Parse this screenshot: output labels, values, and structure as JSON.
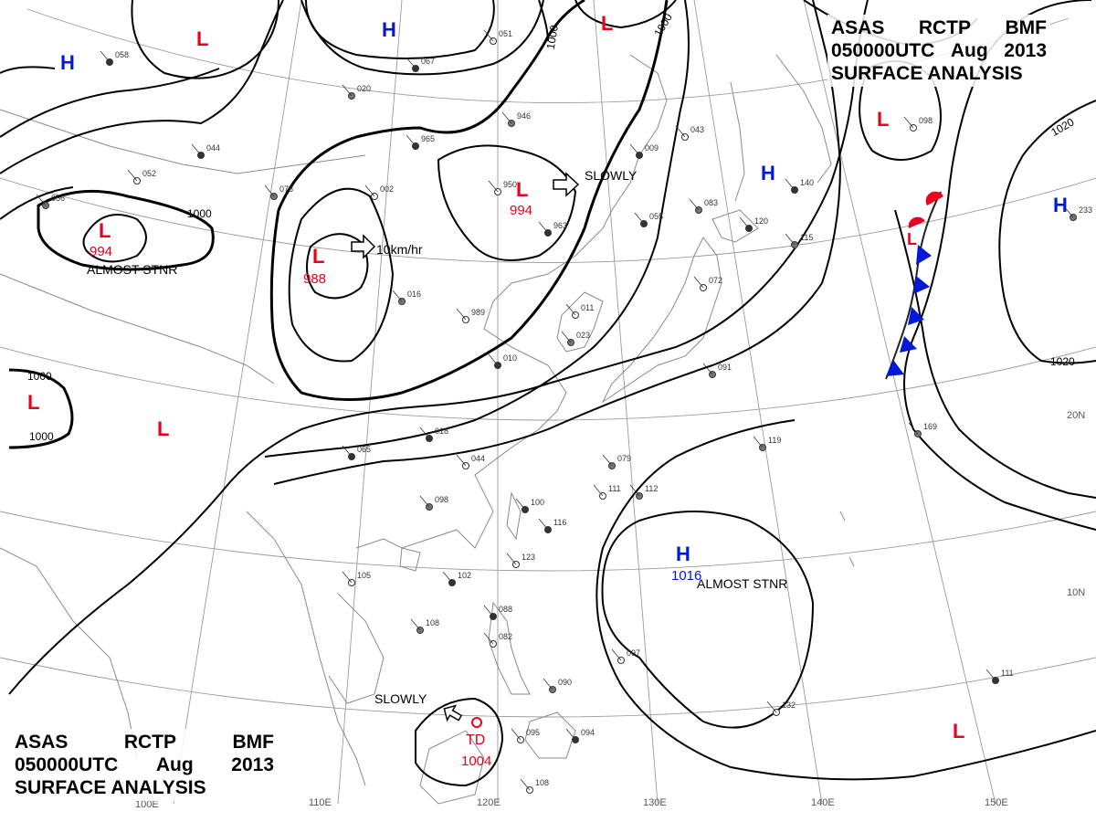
{
  "title": {
    "agency": "ASAS",
    "station": "RCTP",
    "code": "BMF",
    "time": "050000UTC",
    "month": "Aug",
    "year": "2013",
    "product": "SURFACE ANALYSIS"
  },
  "longitude_labels": [
    "100E",
    "110E",
    "120E",
    "130E",
    "140E",
    "150E"
  ],
  "latitude_labels": [
    "20N",
    "10N"
  ],
  "isobar_labels": [
    "1000",
    "1000",
    "1000",
    "1000",
    "1000",
    "1020",
    "1020"
  ],
  "pressure_centers": [
    {
      "type": "L",
      "value": "994",
      "note": "ALMOST STNR"
    },
    {
      "type": "L",
      "value": "988",
      "motion": "10km/hr"
    },
    {
      "type": "L",
      "value": "994",
      "motion": "SLOWLY"
    },
    {
      "type": "H",
      "value": "1016",
      "note": "ALMOST STNR"
    },
    {
      "type": "TD",
      "value": "1004",
      "motion": "SLOWLY"
    },
    {
      "type": "L"
    },
    {
      "type": "L"
    },
    {
      "type": "L"
    },
    {
      "type": "L"
    },
    {
      "type": "L"
    },
    {
      "type": "H"
    },
    {
      "type": "H"
    },
    {
      "type": "H"
    },
    {
      "type": "H"
    }
  ],
  "colors": {
    "low": "#e8001c",
    "high": "#0018d8",
    "isobar": "#000000",
    "geo": "#8a8a8a",
    "front_warm": "#e8001c",
    "front_cold": "#0018d8"
  },
  "station_samples": [
    "965",
    "950",
    "946",
    "963",
    "989",
    "016",
    "018",
    "044",
    "079",
    "100",
    "111",
    "112",
    "116",
    "123",
    "098",
    "102",
    "105",
    "108",
    "088",
    "082",
    "090",
    "094",
    "097",
    "119",
    "120",
    "132",
    "169",
    "111",
    "108",
    "115",
    "140",
    "098",
    "233",
    "067",
    "051",
    "020",
    "058",
    "052",
    "056",
    "044",
    "002",
    "078",
    "009",
    "043",
    "083",
    "055",
    "072",
    "091",
    "065",
    "011",
    "023",
    "010",
    "095"
  ]
}
